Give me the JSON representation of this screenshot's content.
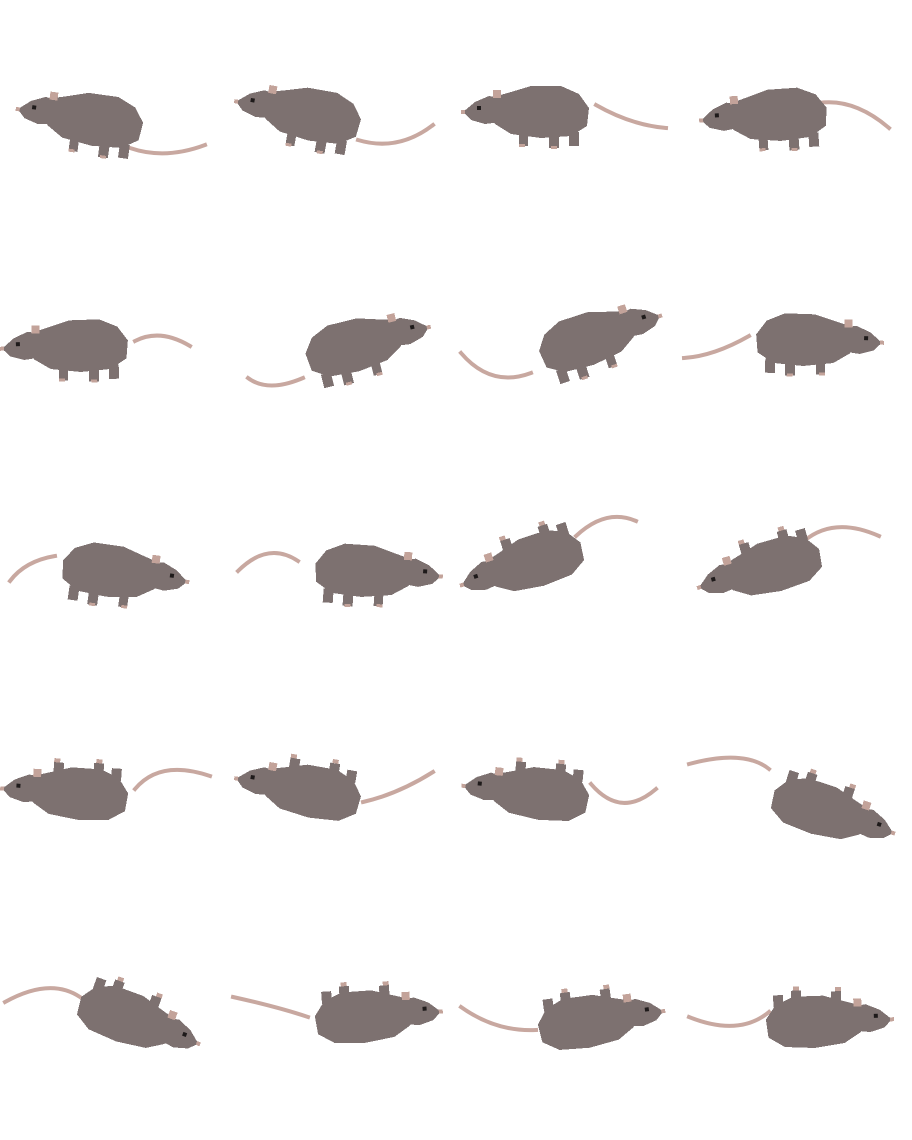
{
  "colors": {
    "background": "#ffffff",
    "fur": "#7d7170",
    "ear_nose_paw": "#c3a39a",
    "tail": "#c8a8a0",
    "eye": "#1e1a1a"
  },
  "sprite": {
    "subject": "rat",
    "columns": 4,
    "rows": 5,
    "frame_count": 20
  }
}
